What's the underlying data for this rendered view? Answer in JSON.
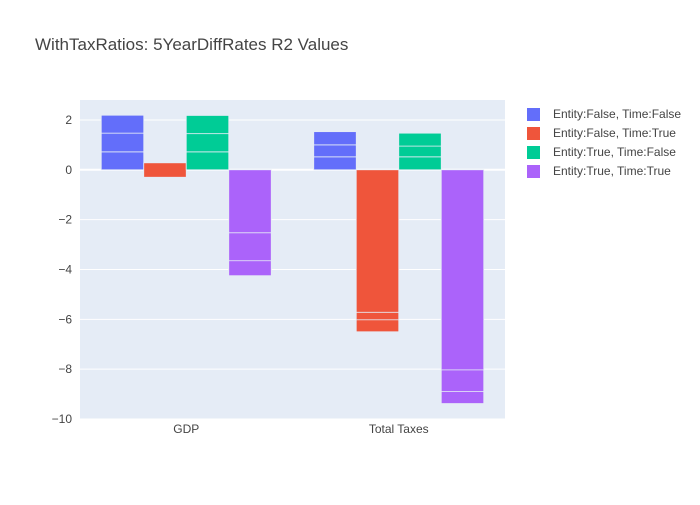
{
  "chart_data": {
    "type": "bar",
    "title": "WithTaxRatios: 5YearDiffRates R2 Values",
    "xlabel": "",
    "ylabel": "",
    "categories": [
      "GDP",
      "Total Taxes"
    ],
    "ylim": [
      -10,
      2.8
    ],
    "yticks": [
      2,
      0,
      -2,
      -4,
      -6,
      -8,
      -10
    ],
    "ytick_labels": [
      "2",
      "0",
      "−2",
      "−4",
      "−6",
      "−8",
      "−10"
    ],
    "grid": true,
    "legend_position": "right",
    "series": [
      {
        "name": "Entity:False, Time:False",
        "color": "#636efa",
        "stacks": [
          [
            0.72,
            0.75,
            0.72
          ],
          [
            0.52,
            0.48,
            0.53
          ]
        ]
      },
      {
        "name": "Entity:False, Time:True",
        "color": "#ef553b",
        "stacks": [
          [
            -0.25,
            -0.05,
            0.58
          ],
          [
            -5.72,
            -0.78,
            0.48
          ]
        ]
      },
      {
        "name": "Entity:True, Time:False",
        "color": "#00cc96",
        "stacks": [
          [
            0.72,
            0.73,
            0.73
          ],
          [
            0.52,
            0.43,
            0.52
          ]
        ]
      },
      {
        "name": "Entity:True, Time:True",
        "color": "#ab63fa",
        "stacks": [
          [
            -2.53,
            -1.72,
            0.6
          ],
          [
            -8.03,
            -1.35,
            0.48
          ]
        ]
      }
    ]
  }
}
